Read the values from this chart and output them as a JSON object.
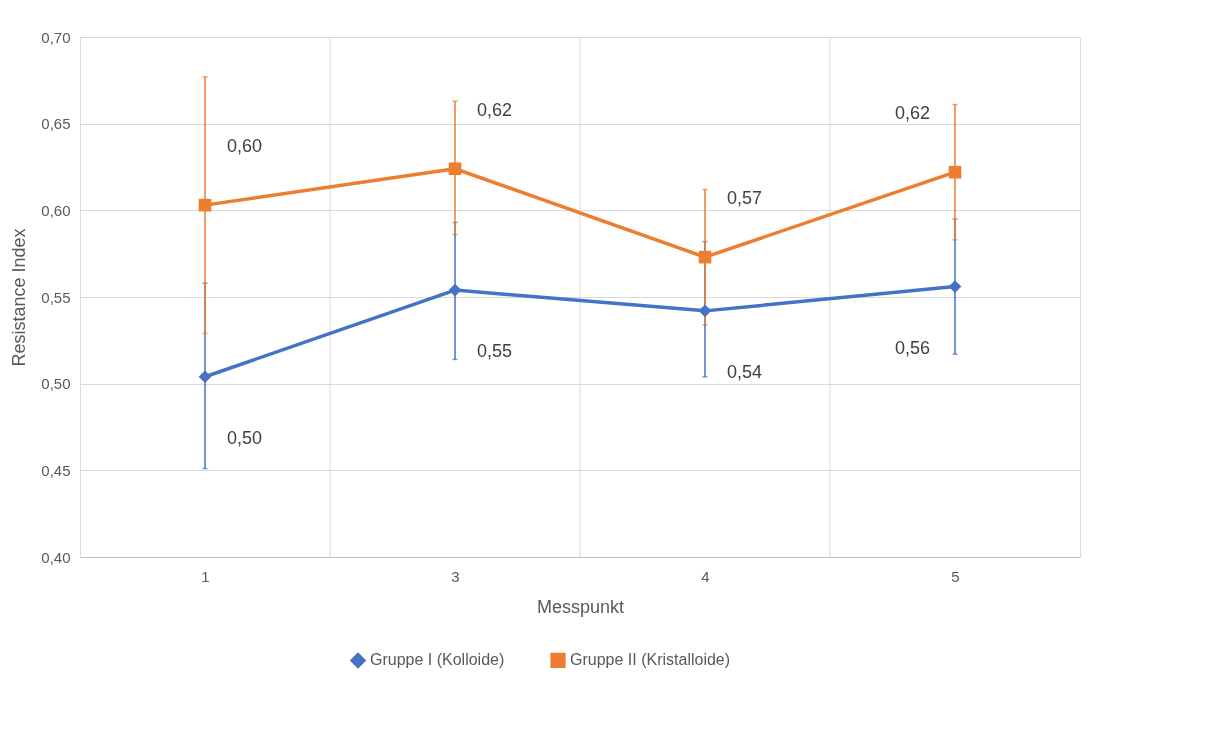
{
  "chart_data": {
    "type": "line",
    "xlabel": "Messpunkt",
    "ylabel": "Resistance Index",
    "categories": [
      "1",
      "3",
      "4",
      "5"
    ],
    "series": [
      {
        "name": "Gruppe I (Kolloide)",
        "color": "#4472c4",
        "marker": "diamond",
        "values": [
          0.504,
          0.554,
          0.542,
          0.556
        ],
        "errors": [
          [
            0.451,
            0.558
          ],
          [
            0.514,
            0.593
          ],
          [
            0.504,
            0.582
          ],
          [
            0.517,
            0.595
          ]
        ],
        "value_labels": [
          "0,50",
          "0,55",
          "0,54",
          "0,56"
        ]
      },
      {
        "name": "Gruppe II (Kristalloide)",
        "color": "#ed7d31",
        "marker": "square",
        "values": [
          0.603,
          0.624,
          0.573,
          0.622
        ],
        "errors": [
          [
            0.529,
            0.677
          ],
          [
            0.586,
            0.663
          ],
          [
            0.534,
            0.612
          ],
          [
            0.583,
            0.661
          ]
        ],
        "value_labels": [
          "0,60",
          "0,62",
          "0,57",
          "0,62"
        ]
      }
    ],
    "ylim": [
      0.4,
      0.7
    ],
    "yticks": [
      {
        "value": 0.4,
        "label": "0,40"
      },
      {
        "value": 0.45,
        "label": "0,45"
      },
      {
        "value": 0.5,
        "label": "0,50"
      },
      {
        "value": 0.55,
        "label": "0,55"
      },
      {
        "value": 0.6,
        "label": "0,60"
      },
      {
        "value": 0.65,
        "label": "0,65"
      },
      {
        "value": 0.7,
        "label": "0,70"
      }
    ],
    "grid": true,
    "legend": "bottom",
    "line_style": "solid"
  }
}
